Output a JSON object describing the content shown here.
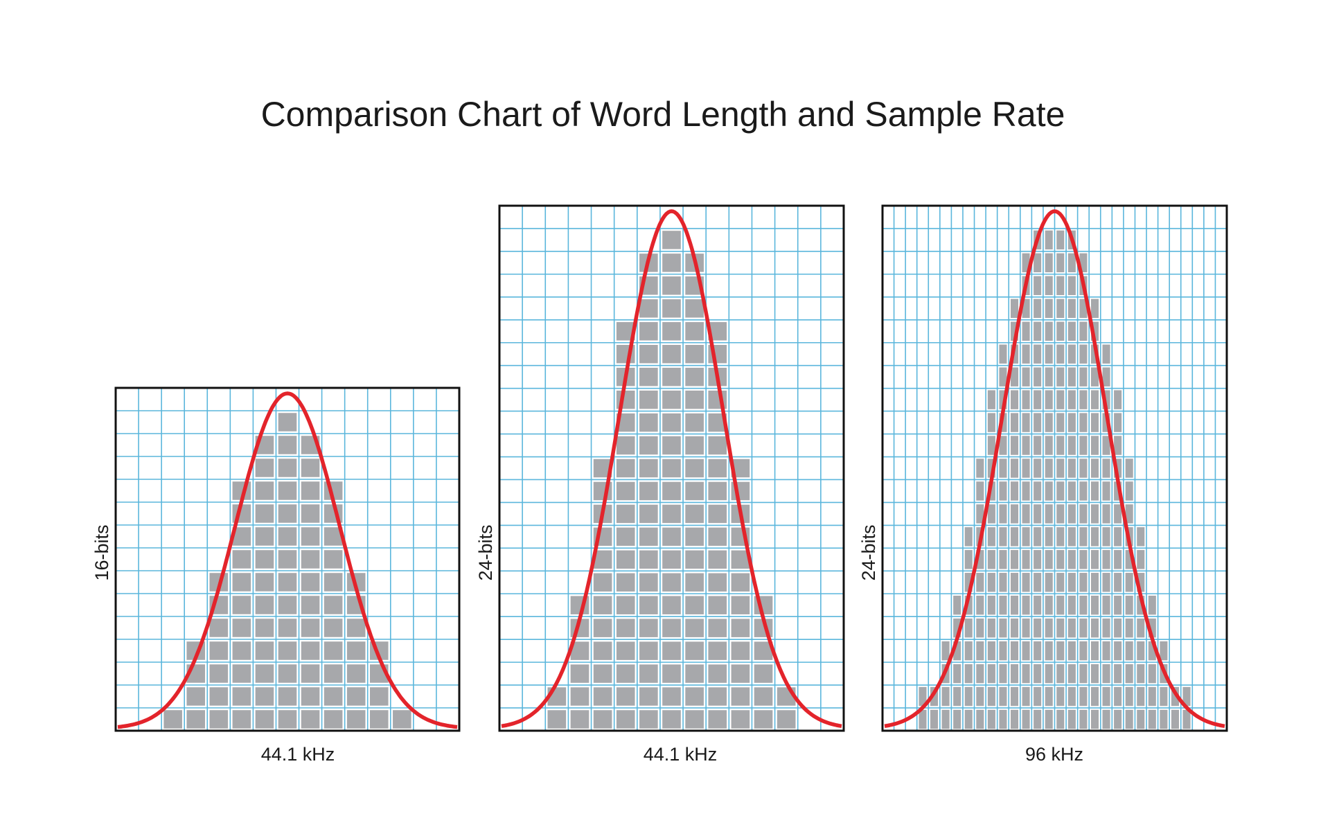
{
  "chart_data": {
    "type": "bar",
    "title": "Comparison Chart of Word Length and Sample Rate",
    "colors": {
      "grid": "#5ab6dc",
      "bar": "#a7a8ab",
      "curve": "#e3242b",
      "border": "#111111"
    },
    "panels": [
      {
        "name": "16-bit 44.1 kHz",
        "xlabel": "44.1 kHz",
        "ylabel": "16-bits",
        "grid_columns": 15,
        "grid_rows": 15,
        "bar_start_column": 2,
        "values": [
          1,
          4,
          7,
          11,
          13,
          14,
          13,
          11,
          7,
          4,
          1
        ]
      },
      {
        "name": "24-bit 44.1 kHz",
        "xlabel": "44.1 kHz",
        "ylabel": "24-bits",
        "grid_columns": 15,
        "grid_rows": 23,
        "bar_start_column": 2,
        "values": [
          2,
          6,
          12,
          18,
          21,
          22,
          21,
          18,
          12,
          6,
          2
        ]
      },
      {
        "name": "24-bit 96 kHz",
        "xlabel": "96 kHz",
        "ylabel": "24-bits",
        "grid_columns": 30,
        "grid_rows": 23,
        "bar_start_column": 3,
        "values": [
          2,
          2,
          4,
          6,
          9,
          12,
          15,
          17,
          19,
          21,
          22,
          22,
          22,
          22,
          21,
          19,
          17,
          15,
          12,
          9,
          6,
          4,
          2,
          2
        ]
      }
    ]
  }
}
